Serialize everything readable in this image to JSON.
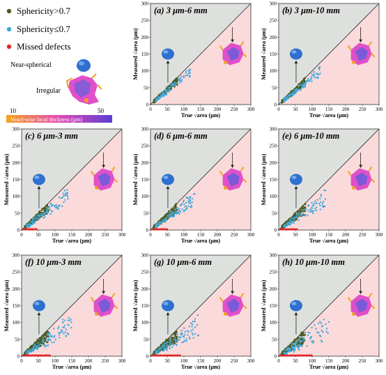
{
  "legend": {
    "items": [
      {
        "label": "Sphericity>0.7",
        "color": "#4b5a1e"
      },
      {
        "label": "Sphericity≤0.7",
        "color": "#3fa9dd"
      },
      {
        "label": "Missed defects",
        "color": "#e0262a"
      }
    ],
    "near_spherical_label": "Near-spherical",
    "irregular_label": "Irregular",
    "colorbar": {
      "min_label": "10",
      "max_label": "50",
      "caption": "Voxel-wise local thickness (μm)"
    }
  },
  "colors": {
    "grey_region": "#dde0dc",
    "pink_region": "#fadada",
    "sph_high": "#4b5a1e",
    "sph_low": "#3fa9dd",
    "missed": "#e0262a",
    "blob_blue": "#2f6fd0",
    "blob_pink": "#e050c8",
    "blob_orange": "#f0a020"
  },
  "axes": {
    "xlabel_prefix": "True ",
    "ylabel_prefix": "Measured ",
    "sqrt_symbol": "√",
    "area_word": "area",
    "unit": " (μm)",
    "x_ticks": [
      "0",
      "50",
      "100",
      "150",
      "200",
      "250",
      "300"
    ],
    "y_ticks": [
      "0",
      "50",
      "100",
      "150",
      "200",
      "250",
      "300"
    ]
  },
  "chart_data": [
    {
      "type": "scatter",
      "title": "(a) 3 μm-6 mm",
      "xlim": [
        0,
        300
      ],
      "ylim": [
        0,
        300
      ],
      "xlabel": "True √area (μm)",
      "ylabel": "Measured √area (μm)",
      "spread": 0.25,
      "max_x": 120,
      "missed_max": 0
    },
    {
      "type": "scatter",
      "title": "(b) 3 μm-10 mm",
      "xlim": [
        0,
        300
      ],
      "ylim": [
        0,
        300
      ],
      "xlabel": "True √area (μm)",
      "ylabel": "Measured √area (μm)",
      "spread": 0.25,
      "max_x": 125,
      "missed_max": 0
    },
    {
      "type": "scatter",
      "title": "(c) 6 μm-3 mm",
      "xlim": [
        0,
        300
      ],
      "ylim": [
        0,
        300
      ],
      "xlabel": "True √area (μm)",
      "ylabel": "Measured √area (μm)",
      "spread": 0.35,
      "max_x": 140,
      "missed_max": 40
    },
    {
      "type": "scatter",
      "title": "(d) 6 μm-6 mm",
      "xlim": [
        0,
        300
      ],
      "ylim": [
        0,
        300
      ],
      "xlabel": "True √area (μm)",
      "ylabel": "Measured √area (μm)",
      "spread": 0.35,
      "max_x": 135,
      "missed_max": 45
    },
    {
      "type": "scatter",
      "title": "(e) 6 μm-10 mm",
      "xlim": [
        0,
        300
      ],
      "ylim": [
        0,
        300
      ],
      "xlabel": "True √area (μm)",
      "ylabel": "Measured √area (μm)",
      "spread": 0.4,
      "max_x": 140,
      "missed_max": 50
    },
    {
      "type": "scatter",
      "title": "(f) 10 μm-3 mm",
      "xlim": [
        0,
        300
      ],
      "ylim": [
        0,
        300
      ],
      "xlabel": "True √area (μm)",
      "ylabel": "Measured √area (μm)",
      "spread": 0.45,
      "max_x": 150,
      "missed_max": 80
    },
    {
      "type": "scatter",
      "title": "(g) 10 μm-6 mm",
      "xlim": [
        0,
        300
      ],
      "ylim": [
        0,
        300
      ],
      "xlabel": "True √area (μm)",
      "ylabel": "Measured √area (μm)",
      "spread": 0.45,
      "max_x": 145,
      "missed_max": 85
    },
    {
      "type": "scatter",
      "title": "(h) 10 μm-10 mm",
      "xlim": [
        0,
        300
      ],
      "ylim": [
        0,
        300
      ],
      "xlabel": "True √area (μm)",
      "ylabel": "Measured √area (μm)",
      "spread": 0.5,
      "max_x": 150,
      "missed_max": 95
    }
  ]
}
